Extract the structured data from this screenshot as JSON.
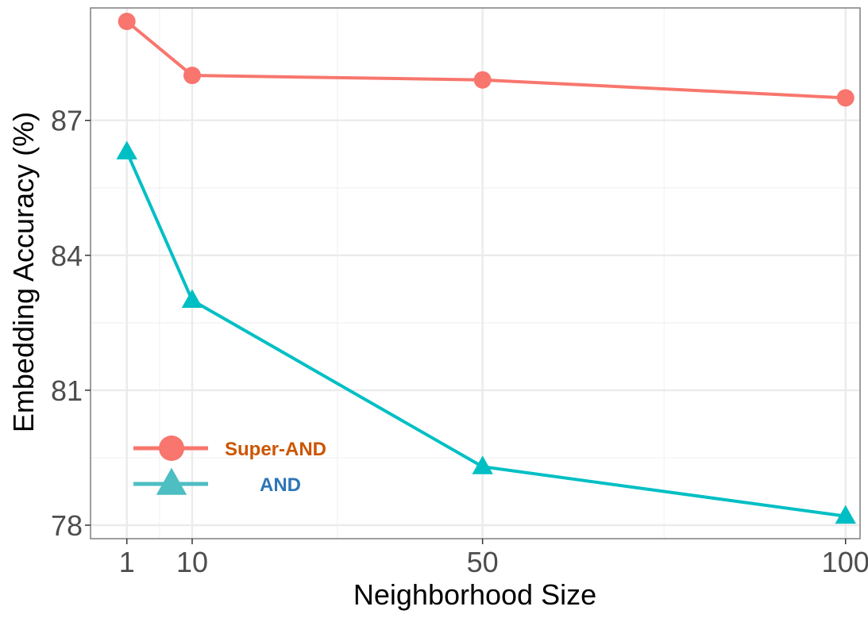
{
  "chart_data": {
    "type": "line",
    "title": "",
    "xlabel": "Neighborhood Size",
    "ylabel": "Embedding Accuracy (%)",
    "x": [
      1,
      10,
      50,
      100
    ],
    "x_ticks": [
      1,
      10,
      50,
      100
    ],
    "x_tick_labels": [
      "1",
      "10",
      "50",
      "100"
    ],
    "y_ticks": [
      78,
      81,
      84,
      87
    ],
    "y_tick_labels": [
      "78",
      "81",
      "84",
      "87"
    ],
    "xlim": [
      -4,
      102
    ],
    "ylim": [
      77.7,
      89.5
    ],
    "grid": true,
    "legend_position": "bottom-left",
    "series": [
      {
        "name": "Super-AND",
        "marker": "circle",
        "color": "#F8766D",
        "label_color": "#CC5500",
        "values": [
          89.2,
          88.0,
          87.9,
          87.5
        ]
      },
      {
        "name": "AND",
        "marker": "triangle",
        "color": "#00BFC4",
        "label_color": "#2E75B6",
        "values": [
          86.3,
          83.0,
          79.3,
          78.2
        ]
      }
    ]
  }
}
